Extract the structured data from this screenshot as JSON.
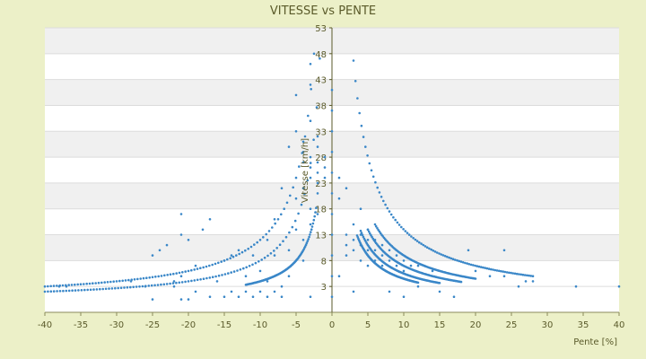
{
  "chart_data": {
    "type": "scatter",
    "title": "VITESSE vs PENTE",
    "xlabel": "Pente [%]",
    "ylabel": "Vitesse [km/h]",
    "xlim": [
      -40,
      40
    ],
    "ylim": [
      -2,
      53
    ],
    "x_ticks": [
      "-40",
      "-35",
      "-30",
      "-25",
      "-20",
      "-15",
      "-10",
      "-5",
      "0",
      "5",
      "10",
      "15",
      "20",
      "25",
      "30",
      "35",
      "40"
    ],
    "y_ticks": [
      "3",
      "8",
      "13",
      "18",
      "23",
      "28",
      "33",
      "38",
      "43",
      "48",
      "53"
    ],
    "grid": "horizontal bands",
    "legend": "none",
    "marker_color": "#3a87c8",
    "series": [
      {
        "values": [
          {
            "x": -38,
            "y": 3
          },
          {
            "x": -37,
            "y": 3
          },
          {
            "x": -28,
            "y": 4
          },
          {
            "x": -26,
            "y": 3
          },
          {
            "x": -25,
            "y": 9
          },
          {
            "x": -25,
            "y": 0.5
          },
          {
            "x": -24,
            "y": 10
          },
          {
            "x": -23,
            "y": 11
          },
          {
            "x": -22,
            "y": 4
          },
          {
            "x": -22,
            "y": 3
          },
          {
            "x": -21,
            "y": 13
          },
          {
            "x": -21,
            "y": 17
          },
          {
            "x": -21,
            "y": 5
          },
          {
            "x": -21,
            "y": 0.5
          },
          {
            "x": -20,
            "y": 12
          },
          {
            "x": -20,
            "y": 0.5
          },
          {
            "x": -19,
            "y": 2
          },
          {
            "x": -19,
            "y": 7
          },
          {
            "x": -18,
            "y": 14
          },
          {
            "x": -17,
            "y": 16
          },
          {
            "x": -17,
            "y": 1
          },
          {
            "x": -16,
            "y": 4
          },
          {
            "x": -15,
            "y": 1
          },
          {
            "x": -15,
            "y": 8
          },
          {
            "x": -14,
            "y": 9
          },
          {
            "x": -14,
            "y": 2
          },
          {
            "x": -13,
            "y": 1
          },
          {
            "x": -13,
            "y": 10
          },
          {
            "x": -12,
            "y": 2
          },
          {
            "x": -12,
            "y": 5
          },
          {
            "x": -11,
            "y": 9
          },
          {
            "x": -11,
            "y": 1
          },
          {
            "x": -10,
            "y": 2
          },
          {
            "x": -10,
            "y": 6
          },
          {
            "x": -9,
            "y": 4
          },
          {
            "x": -9,
            "y": 1
          },
          {
            "x": -9,
            "y": 12
          },
          {
            "x": -8,
            "y": 2
          },
          {
            "x": -8,
            "y": 9
          },
          {
            "x": -8,
            "y": 16
          },
          {
            "x": -7,
            "y": 3
          },
          {
            "x": -7,
            "y": 22
          },
          {
            "x": -7,
            "y": 1
          },
          {
            "x": -6,
            "y": 10
          },
          {
            "x": -6,
            "y": 30
          },
          {
            "x": -6,
            "y": 5
          },
          {
            "x": -5,
            "y": 14
          },
          {
            "x": -5,
            "y": 20
          },
          {
            "x": -5,
            "y": 33
          },
          {
            "x": -5,
            "y": 40
          },
          {
            "x": -4,
            "y": 12
          },
          {
            "x": -4,
            "y": 22
          },
          {
            "x": -4,
            "y": 27
          },
          {
            "x": -4,
            "y": 29
          },
          {
            "x": -4,
            "y": 31
          },
          {
            "x": -4,
            "y": 8
          },
          {
            "x": -3,
            "y": 15
          },
          {
            "x": -3,
            "y": 18
          },
          {
            "x": -3,
            "y": 24
          },
          {
            "x": -3,
            "y": 26
          },
          {
            "x": -3,
            "y": 28
          },
          {
            "x": -3,
            "y": 35
          },
          {
            "x": -3,
            "y": 42
          },
          {
            "x": -3,
            "y": 46
          },
          {
            "x": -3,
            "y": 1
          },
          {
            "x": -2,
            "y": 17
          },
          {
            "x": -2,
            "y": 21
          },
          {
            "x": -2,
            "y": 23
          },
          {
            "x": -2,
            "y": 25
          },
          {
            "x": -2,
            "y": 27
          },
          {
            "x": -2,
            "y": 30
          },
          {
            "x": -2,
            "y": 32
          },
          {
            "x": -1,
            "y": 26
          },
          {
            "x": -1,
            "y": 28
          },
          {
            "x": -1,
            "y": 24
          },
          {
            "x": 0,
            "y": 1
          },
          {
            "x": 0,
            "y": 5
          },
          {
            "x": 0,
            "y": 9
          },
          {
            "x": 0,
            "y": 13
          },
          {
            "x": 0,
            "y": 17
          },
          {
            "x": 0,
            "y": 21
          },
          {
            "x": 0,
            "y": 25
          },
          {
            "x": 0,
            "y": 29
          },
          {
            "x": 0,
            "y": 33
          },
          {
            "x": 0,
            "y": 37
          },
          {
            "x": 0,
            "y": 41
          },
          {
            "x": 1,
            "y": 24
          },
          {
            "x": 1,
            "y": 20
          },
          {
            "x": 1,
            "y": 5
          },
          {
            "x": 2,
            "y": 22
          },
          {
            "x": 2,
            "y": 11
          },
          {
            "x": 2,
            "y": 13
          },
          {
            "x": 2,
            "y": 9
          },
          {
            "x": 3,
            "y": 15
          },
          {
            "x": 3,
            "y": 12
          },
          {
            "x": 3,
            "y": 10
          },
          {
            "x": 3,
            "y": 2
          },
          {
            "x": 4,
            "y": 18
          },
          {
            "x": 4,
            "y": 13
          },
          {
            "x": 4,
            "y": 11
          },
          {
            "x": 4,
            "y": 8
          },
          {
            "x": 5,
            "y": 14
          },
          {
            "x": 5,
            "y": 12
          },
          {
            "x": 5,
            "y": 10
          },
          {
            "x": 5,
            "y": 7
          },
          {
            "x": 6,
            "y": 12
          },
          {
            "x": 6,
            "y": 10
          },
          {
            "x": 6,
            "y": 8
          },
          {
            "x": 7,
            "y": 11
          },
          {
            "x": 7,
            "y": 9
          },
          {
            "x": 7,
            "y": 7
          },
          {
            "x": 8,
            "y": 10
          },
          {
            "x": 8,
            "y": 8
          },
          {
            "x": 8,
            "y": 2
          },
          {
            "x": 9,
            "y": 9
          },
          {
            "x": 9,
            "y": 7
          },
          {
            "x": 10,
            "y": 8
          },
          {
            "x": 10,
            "y": 6
          },
          {
            "x": 10,
            "y": 1
          },
          {
            "x": 11,
            "y": 7
          },
          {
            "x": 12,
            "y": 7
          },
          {
            "x": 12,
            "y": 3
          },
          {
            "x": 14,
            "y": 6
          },
          {
            "x": 15,
            "y": 2
          },
          {
            "x": 17,
            "y": 1
          },
          {
            "x": 19,
            "y": 10
          },
          {
            "x": 20,
            "y": 6
          },
          {
            "x": 22,
            "y": 5
          },
          {
            "x": 24,
            "y": 10
          },
          {
            "x": 24,
            "y": 5
          },
          {
            "x": 26,
            "y": 3
          },
          {
            "x": 27,
            "y": 4
          },
          {
            "x": 28,
            "y": 4
          },
          {
            "x": 34,
            "y": 3
          },
          {
            "x": 40,
            "y": 3
          }
        ],
        "curves": [
          {
            "k": 120,
            "x_from": -40,
            "x_to": -2.5
          },
          {
            "k": 80,
            "x_from": -40,
            "x_to": -1.7
          },
          {
            "k": 40,
            "x_from": -12,
            "x_to": -2.2
          },
          {
            "k": 140,
            "x_from": 3,
            "x_to": 28
          },
          {
            "k": 90,
            "x_from": 6,
            "x_to": 20
          },
          {
            "k": 70,
            "x_from": 5,
            "x_to": 18
          },
          {
            "k": 55,
            "x_from": 4,
            "x_to": 15
          },
          {
            "k": 45,
            "x_from": 3.5,
            "x_to": 12
          }
        ]
      }
    ]
  }
}
